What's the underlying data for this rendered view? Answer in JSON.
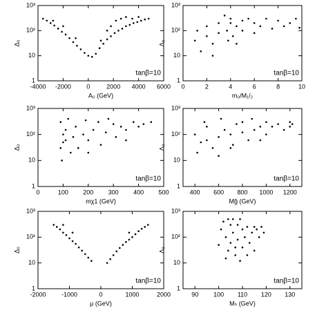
{
  "chart_data": [
    {
      "type": "scatter",
      "x_label": "A₀ (GeV)",
      "y_label": "Δ₀",
      "annotation": "tanβ=10",
      "log_y": true,
      "color": "#000000",
      "xlim": [
        -4000,
        6000
      ],
      "xticks": [
        -4000,
        -2000,
        0,
        2000,
        4000,
        6000
      ],
      "ylim": [
        1,
        1000
      ],
      "yticks": [
        1,
        10,
        {
          "value": 100,
          "label": "10²"
        },
        {
          "value": 1000,
          "label": "10³"
        }
      ],
      "x": [
        -3600,
        -3300,
        -3000,
        -2700,
        -2400,
        -2100,
        -1800,
        -1500,
        -1200,
        -900,
        -600,
        -300,
        0,
        300,
        600,
        900,
        1200,
        1500,
        1800,
        2100,
        2400,
        2700,
        3000,
        3300,
        3600,
        3900,
        4200,
        4500,
        4800,
        1800,
        2200,
        2600,
        3000,
        3500,
        4000,
        1000,
        1500,
        -2000,
        -2800,
        -1000
      ],
      "values": [
        300,
        250,
        200,
        160,
        120,
        90,
        70,
        50,
        35,
        25,
        18,
        13,
        10,
        9,
        12,
        20,
        30,
        45,
        60,
        80,
        100,
        120,
        150,
        170,
        200,
        220,
        250,
        280,
        300,
        150,
        250,
        300,
        350,
        300,
        350,
        40,
        100,
        150,
        250,
        50
      ]
    },
    {
      "type": "scatter",
      "x_label": "m₀/M₁/₂",
      "y_label": "Δ₀",
      "annotation": "tanβ=10",
      "log_y": true,
      "color": "#000000",
      "xlim": [
        0,
        10
      ],
      "xticks": [
        0,
        2,
        4,
        6,
        8,
        10
      ],
      "ylim": [
        1,
        1000
      ],
      "yticks": [
        1,
        10,
        {
          "value": 100,
          "label": "10²"
        },
        {
          "value": 1000,
          "label": "10³"
        }
      ],
      "x": [
        1,
        1.5,
        2,
        2,
        2.5,
        3,
        3,
        3.5,
        3.7,
        3.8,
        4,
        4,
        4.2,
        4.5,
        5,
        5,
        5.5,
        6,
        6,
        6.5,
        7,
        7.5,
        8,
        8.5,
        9,
        9.5,
        9.8,
        2.5,
        1.2,
        4.5
      ],
      "values": [
        40,
        15,
        60,
        150,
        30,
        200,
        80,
        400,
        100,
        40,
        300,
        200,
        60,
        150,
        250,
        100,
        300,
        80,
        200,
        150,
        300,
        120,
        250,
        150,
        200,
        300,
        130,
        10,
        100,
        30
      ]
    },
    {
      "type": "scatter",
      "x_label": "mχ1 (GeV)",
      "y_label": "Δ₀",
      "annotation": "tanβ=10",
      "log_y": true,
      "color": "#000000",
      "xlim": [
        0,
        500
      ],
      "xticks": [
        0,
        100,
        200,
        300,
        400,
        500
      ],
      "ylim": [
        1,
        1000
      ],
      "yticks": [
        1,
        10,
        {
          "value": 100,
          "label": "10²"
        },
        {
          "value": 1000,
          "label": "10³"
        }
      ],
      "x": [
        90,
        90,
        95,
        100,
        110,
        120,
        130,
        140,
        150,
        160,
        180,
        190,
        200,
        220,
        240,
        250,
        270,
        300,
        310,
        330,
        350,
        380,
        400,
        420,
        450,
        100,
        110,
        280,
        200,
        350
      ],
      "values": [
        30,
        300,
        10,
        50,
        150,
        400,
        20,
        80,
        200,
        30,
        100,
        350,
        60,
        150,
        300,
        40,
        120,
        250,
        80,
        200,
        150,
        300,
        200,
        250,
        300,
        100,
        60,
        400,
        20,
        60
      ]
    },
    {
      "type": "scatter",
      "x_label": "Mg̃ (GeV)",
      "y_label": "Δ₀",
      "annotation": "tanβ=10",
      "log_y": true,
      "color": "#000000",
      "xlim": [
        300,
        1300
      ],
      "xticks": [
        400,
        600,
        800,
        1000,
        1200
      ],
      "ylim": [
        1,
        1000
      ],
      "yticks": [
        1,
        10,
        {
          "value": 100,
          "label": "10²"
        },
        {
          "value": 1000,
          "label": "10³"
        }
      ],
      "x": [
        400,
        420,
        450,
        480,
        500,
        550,
        600,
        620,
        650,
        700,
        720,
        750,
        800,
        850,
        880,
        900,
        950,
        1000,
        1000,
        1050,
        1100,
        1150,
        1200,
        1200,
        1220,
        600,
        500,
        800,
        950,
        700
      ],
      "values": [
        100,
        20,
        50,
        300,
        60,
        30,
        80,
        400,
        150,
        100,
        40,
        250,
        120,
        60,
        400,
        150,
        200,
        100,
        300,
        200,
        250,
        150,
        300,
        200,
        250,
        15,
        200,
        300,
        60,
        30
      ]
    },
    {
      "type": "scatter",
      "x_label": "μ (GeV)",
      "y_label": "Δ₀",
      "annotation": "tanβ=10",
      "log_y": true,
      "color": "#000000",
      "xlim": [
        -2000,
        2000
      ],
      "xticks": [
        -2000,
        -1000,
        0,
        1000,
        2000
      ],
      "ylim": [
        1,
        1000
      ],
      "yticks": [
        1,
        10,
        {
          "value": 100,
          "label": "10²"
        },
        {
          "value": 1000,
          "label": "10³"
        }
      ],
      "x": [
        -1500,
        -1400,
        -1300,
        -1200,
        -1100,
        -1000,
        -900,
        -800,
        -700,
        -600,
        -500,
        -400,
        -300,
        -1200,
        -900,
        200,
        300,
        400,
        500,
        600,
        700,
        800,
        900,
        1000,
        1100,
        1200,
        1300,
        1400,
        1500,
        900
      ],
      "values": [
        300,
        250,
        200,
        150,
        120,
        90,
        70,
        55,
        40,
        30,
        22,
        16,
        12,
        300,
        150,
        10,
        14,
        20,
        28,
        38,
        50,
        65,
        80,
        100,
        130,
        170,
        210,
        250,
        300,
        150
      ]
    },
    {
      "type": "scatter",
      "x_label": "Mₕ (GeV)",
      "y_label": "Δ₀",
      "annotation": "tanβ=10",
      "log_y": true,
      "color": "#000000",
      "xlim": [
        85,
        135
      ],
      "xticks": [
        90,
        100,
        110,
        120,
        130
      ],
      "ylim": [
        1,
        1000
      ],
      "yticks": [
        1,
        10,
        {
          "value": 100,
          "label": "10²"
        },
        {
          "value": 1000,
          "label": "10³"
        }
      ],
      "x": [
        100,
        101,
        102,
        103,
        104,
        105,
        105,
        106,
        107,
        108,
        108,
        109,
        110,
        110,
        111,
        112,
        113,
        114,
        115,
        116,
        117,
        118,
        119,
        104,
        106,
        112,
        103,
        107,
        109,
        115
      ],
      "values": [
        50,
        200,
        400,
        100,
        30,
        300,
        60,
        150,
        20,
        300,
        80,
        12,
        200,
        40,
        100,
        250,
        60,
        150,
        30,
        200,
        100,
        250,
        150,
        500,
        500,
        20,
        15,
        40,
        500,
        250
      ]
    }
  ]
}
